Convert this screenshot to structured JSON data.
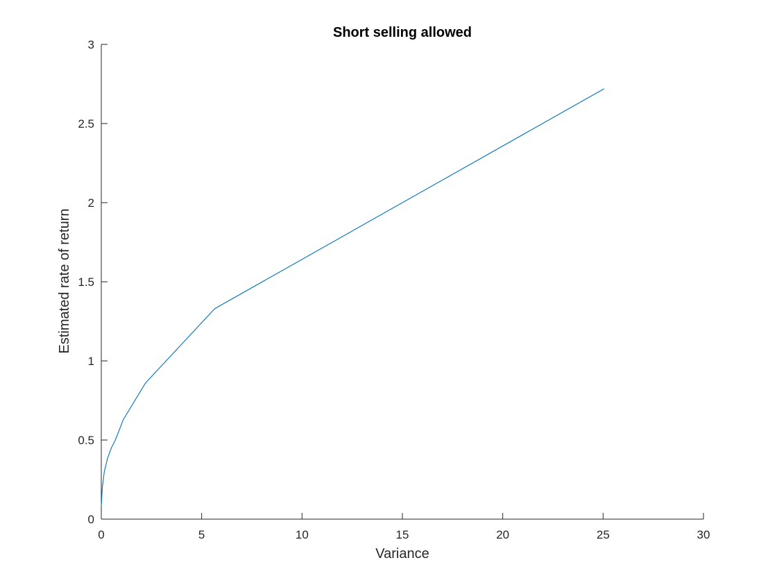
{
  "chart_data": {
    "type": "line",
    "title": "Short selling allowed",
    "xlabel": "Variance",
    "ylabel": "Estimated rate of return",
    "xlim": [
      0,
      30
    ],
    "ylim": [
      0,
      3
    ],
    "xticks": [
      0,
      5,
      10,
      15,
      20,
      25,
      30
    ],
    "xtick_labels": [
      "0",
      "5",
      "10",
      "15",
      "20",
      "25",
      "30"
    ],
    "yticks": [
      0,
      0.5,
      1,
      1.5,
      2,
      2.5,
      3
    ],
    "ytick_labels": [
      "0",
      "0.5",
      "1",
      "1.5",
      "2",
      "2.5",
      "3"
    ],
    "grid": false,
    "box": false,
    "series": [
      {
        "color": "#0072BD",
        "x": [
          0.0,
          0.05,
          0.15,
          0.3,
          0.5,
          0.7,
          1.1,
          2.2,
          5.65,
          25.05
        ],
        "y": [
          0.08,
          0.2,
          0.3,
          0.38,
          0.45,
          0.5,
          0.63,
          0.86,
          1.33,
          2.72
        ]
      }
    ]
  }
}
